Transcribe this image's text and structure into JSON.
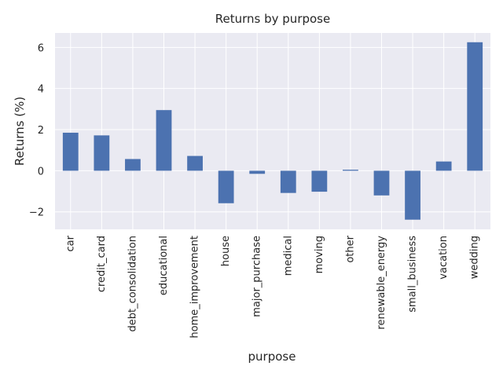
{
  "chart_data": {
    "type": "bar",
    "title": "Returns by purpose",
    "xlabel": "purpose",
    "ylabel": "Returns (%)",
    "categories": [
      "car",
      "credit_card",
      "debt_consolidation",
      "educational",
      "home_improvement",
      "house",
      "major_purchase",
      "medical",
      "moving",
      "other",
      "renewable_energy",
      "small_business",
      "vacation",
      "wedding"
    ],
    "values": [
      1.85,
      1.72,
      0.57,
      2.95,
      0.72,
      -1.58,
      -0.15,
      -1.08,
      -1.02,
      0.05,
      -1.2,
      -2.38,
      0.45,
      6.25
    ],
    "ylim": [
      -2.85,
      6.7
    ],
    "yticks": [
      -2,
      0,
      2,
      4,
      6
    ],
    "ytick_labels": [
      "−2",
      "0",
      "2",
      "4",
      "6"
    ],
    "grid": true,
    "legend": "none",
    "bar_color": "#4c72b0",
    "background_color": "#eaeaf2"
  }
}
